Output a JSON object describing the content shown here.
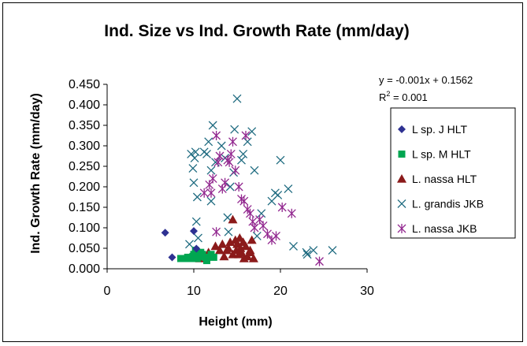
{
  "colors": {
    "background": "#ffffff",
    "axis": "#000000",
    "l_sp_j_hlt": "#2e3192",
    "l_sp_m_hlt": "#00a651",
    "l_nassa_hlt": "#8b1a1a",
    "l_grandis_jkb": "#1f6b80",
    "l_nassa_jkb": "#92278f"
  },
  "trendline": {
    "equation": "y = -0.001x + 0.1562",
    "r2_label": "R",
    "r2_sup": "2",
    "r2_value": " = 0.001"
  },
  "chart_data": {
    "type": "scatter",
    "title": "Ind. Size vs Ind. Growth Rate (mm/day)",
    "xlabel": "Height (mm)",
    "ylabel": "Ind. Growth Rate (mm/day)",
    "xlim": [
      0,
      30
    ],
    "ylim": [
      0,
      0.45
    ],
    "x_ticks": [
      0,
      10,
      20,
      30
    ],
    "x_tick_labels": [
      "0",
      "10",
      "20",
      "30"
    ],
    "y_ticks": [
      0,
      0.05,
      0.1,
      0.15,
      0.2,
      0.25,
      0.3,
      0.35,
      0.4,
      0.45
    ],
    "y_tick_labels": [
      "0.000",
      "0.050",
      "0.100",
      "0.150",
      "0.200",
      "0.250",
      "0.300",
      "0.350",
      "0.400",
      "0.450"
    ],
    "grid": false,
    "legend_position": "right",
    "series": [
      {
        "name": "L sp. J HLT",
        "marker": "diamond",
        "color": "#2e3192",
        "points": [
          [
            6.7,
            0.088
          ],
          [
            7.5,
            0.028
          ],
          [
            10.0,
            0.092
          ],
          [
            10.3,
            0.049
          ]
        ]
      },
      {
        "name": "L sp. M HLT",
        "marker": "square",
        "color": "#00a651",
        "points": [
          [
            8.5,
            0.025
          ],
          [
            9.0,
            0.025
          ],
          [
            9.3,
            0.028
          ],
          [
            9.6,
            0.025
          ],
          [
            9.9,
            0.03
          ],
          [
            10.0,
            0.035
          ],
          [
            10.2,
            0.045
          ],
          [
            10.4,
            0.025
          ],
          [
            10.6,
            0.03
          ],
          [
            10.8,
            0.04
          ],
          [
            11.0,
            0.035
          ],
          [
            11.3,
            0.028
          ],
          [
            11.5,
            0.02
          ],
          [
            12.0,
            0.035
          ],
          [
            12.3,
            0.028
          ]
        ]
      },
      {
        "name": "L. nassa HLT",
        "marker": "triangle",
        "color": "#8b1a1a",
        "points": [
          [
            10.7,
            0.025
          ],
          [
            11.0,
            0.035
          ],
          [
            11.7,
            0.04
          ],
          [
            12.0,
            0.03
          ],
          [
            12.5,
            0.055
          ],
          [
            13.0,
            0.045
          ],
          [
            13.3,
            0.06
          ],
          [
            13.5,
            0.03
          ],
          [
            13.8,
            0.045
          ],
          [
            14.0,
            0.05
          ],
          [
            14.2,
            0.065
          ],
          [
            14.5,
            0.035
          ],
          [
            14.5,
            0.12
          ],
          [
            14.8,
            0.07
          ],
          [
            14.9,
            0.045
          ],
          [
            15.0,
            0.06
          ],
          [
            15.2,
            0.035
          ],
          [
            15.3,
            0.075
          ],
          [
            15.4,
            0.05
          ],
          [
            15.5,
            0.04
          ],
          [
            15.7,
            0.065
          ],
          [
            15.8,
            0.025
          ],
          [
            16.0,
            0.055
          ],
          [
            16.2,
            0.03
          ],
          [
            16.5,
            0.04
          ],
          [
            16.7,
            0.07
          ],
          [
            16.9,
            0.025
          ],
          [
            16.5,
            0.045
          ]
        ]
      },
      {
        "name": "L. grandis JKB",
        "marker": "x",
        "color": "#1f6b80",
        "points": [
          [
            9.5,
            0.06
          ],
          [
            9.7,
            0.28
          ],
          [
            9.9,
            0.245
          ],
          [
            10.0,
            0.21
          ],
          [
            10.1,
            0.27
          ],
          [
            10.2,
            0.285
          ],
          [
            10.4,
            0.175
          ],
          [
            10.3,
            0.115
          ],
          [
            10.5,
            0.075
          ],
          [
            11.2,
            0.285
          ],
          [
            11.5,
            0.28
          ],
          [
            11.7,
            0.31
          ],
          [
            12.0,
            0.165
          ],
          [
            12.0,
            0.24
          ],
          [
            12.2,
            0.35
          ],
          [
            12.5,
            0.26
          ],
          [
            13.2,
            0.3
          ],
          [
            13.6,
            0.27
          ],
          [
            14.2,
            0.2
          ],
          [
            14.7,
            0.34
          ],
          [
            15.0,
            0.415
          ],
          [
            14.6,
            0.235
          ],
          [
            15.5,
            0.265
          ],
          [
            15.7,
            0.28
          ],
          [
            16.2,
            0.31
          ],
          [
            16.7,
            0.335
          ],
          [
            17.0,
            0.24
          ],
          [
            17.3,
            0.08
          ],
          [
            19.0,
            0.165
          ],
          [
            19.4,
            0.185
          ],
          [
            19.7,
            0.18
          ],
          [
            20.0,
            0.265
          ],
          [
            20.9,
            0.195
          ],
          [
            21.5,
            0.055
          ],
          [
            23.0,
            0.04
          ],
          [
            23.1,
            0.035
          ],
          [
            23.8,
            0.045
          ],
          [
            26.0,
            0.045
          ],
          [
            17.8,
            0.135
          ],
          [
            13.9,
            0.125
          ],
          [
            14.0,
            0.09
          ]
        ]
      },
      {
        "name": "L. nassa JKB",
        "marker": "star",
        "color": "#92278f",
        "points": [
          [
            11.2,
            0.185
          ],
          [
            11.8,
            0.205
          ],
          [
            12.0,
            0.185
          ],
          [
            12.2,
            0.22
          ],
          [
            12.6,
            0.325
          ],
          [
            12.8,
            0.26
          ],
          [
            13.0,
            0.275
          ],
          [
            13.3,
            0.195
          ],
          [
            13.6,
            0.21
          ],
          [
            13.9,
            0.265
          ],
          [
            14.1,
            0.26
          ],
          [
            14.3,
            0.28
          ],
          [
            14.5,
            0.31
          ],
          [
            14.8,
            0.24
          ],
          [
            15.2,
            0.2
          ],
          [
            15.5,
            0.17
          ],
          [
            15.8,
            0.165
          ],
          [
            16.0,
            0.325
          ],
          [
            16.2,
            0.145
          ],
          [
            16.5,
            0.135
          ],
          [
            16.8,
            0.115
          ],
          [
            17.0,
            0.1
          ],
          [
            17.6,
            0.12
          ],
          [
            18.0,
            0.105
          ],
          [
            18.5,
            0.085
          ],
          [
            19.0,
            0.07
          ],
          [
            19.5,
            0.08
          ],
          [
            20.2,
            0.15
          ],
          [
            21.3,
            0.135
          ],
          [
            24.5,
            0.018
          ],
          [
            12.6,
            0.09
          ]
        ]
      }
    ]
  }
}
